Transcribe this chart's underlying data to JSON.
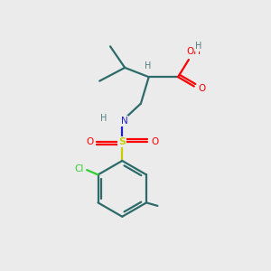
{
  "bg_color": "#ebebeb",
  "bond_color": "#2d6b6b",
  "atom_colors": {
    "O": "#ff0000",
    "N": "#2222cc",
    "S": "#cccc00",
    "Cl": "#33cc33",
    "H": "#508080",
    "C": "#2d6b6b"
  },
  "ring_color": "#2d6b6b"
}
